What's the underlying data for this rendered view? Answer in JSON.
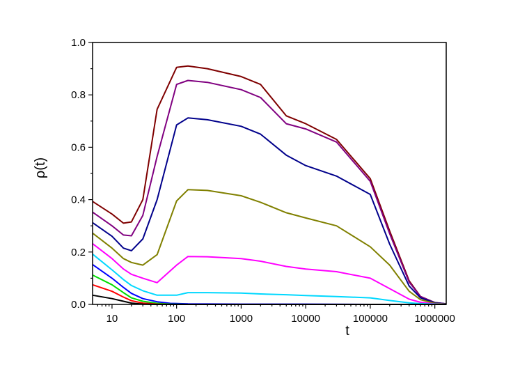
{
  "chart_data": {
    "type": "line",
    "xlabel": "t",
    "ylabel": "ρ(t)",
    "xscale": "log",
    "xlim": [
      5,
      1500000
    ],
    "ylim": [
      0.0,
      1.0
    ],
    "grid": false,
    "legend": "none",
    "xticks": [
      10,
      100,
      1000,
      10000,
      100000,
      1000000
    ],
    "xtick_labels": [
      "10",
      "100",
      "1000",
      "10000",
      "100000",
      "1000000"
    ],
    "yticks": [
      0.0,
      0.2,
      0.4,
      0.6,
      0.8,
      1.0
    ],
    "ytick_labels": [
      "0.0",
      "0.2",
      "0.4",
      "0.6",
      "0.8",
      "1.0"
    ],
    "series": [
      {
        "color": "#7f0000",
        "points": [
          [
            5,
            0.393
          ],
          [
            10,
            0.345
          ],
          [
            15,
            0.31
          ],
          [
            20,
            0.315
          ],
          [
            30,
            0.4
          ],
          [
            50,
            0.745
          ],
          [
            100,
            0.905
          ],
          [
            150,
            0.91
          ],
          [
            300,
            0.9
          ],
          [
            1000,
            0.87
          ],
          [
            2000,
            0.84
          ],
          [
            5000,
            0.72
          ],
          [
            10000,
            0.69
          ],
          [
            30000,
            0.63
          ],
          [
            100000,
            0.48
          ],
          [
            200000,
            0.28
          ],
          [
            400000,
            0.09
          ],
          [
            600000,
            0.03
          ],
          [
            1000000,
            0.007
          ],
          [
            1500000,
            0.002
          ]
        ]
      },
      {
        "color": "#800080",
        "points": [
          [
            5,
            0.352
          ],
          [
            10,
            0.3
          ],
          [
            15,
            0.265
          ],
          [
            20,
            0.262
          ],
          [
            30,
            0.34
          ],
          [
            50,
            0.565
          ],
          [
            100,
            0.84
          ],
          [
            150,
            0.855
          ],
          [
            300,
            0.848
          ],
          [
            1000,
            0.82
          ],
          [
            2000,
            0.79
          ],
          [
            5000,
            0.69
          ],
          [
            10000,
            0.67
          ],
          [
            30000,
            0.62
          ],
          [
            100000,
            0.47
          ],
          [
            200000,
            0.27
          ],
          [
            400000,
            0.085
          ],
          [
            600000,
            0.03
          ],
          [
            1000000,
            0.007
          ],
          [
            1500000,
            0.002
          ]
        ]
      },
      {
        "color": "#00008b",
        "points": [
          [
            5,
            0.312
          ],
          [
            10,
            0.26
          ],
          [
            15,
            0.215
          ],
          [
            20,
            0.205
          ],
          [
            30,
            0.25
          ],
          [
            50,
            0.4
          ],
          [
            100,
            0.685
          ],
          [
            150,
            0.712
          ],
          [
            300,
            0.705
          ],
          [
            1000,
            0.68
          ],
          [
            2000,
            0.65
          ],
          [
            5000,
            0.57
          ],
          [
            10000,
            0.53
          ],
          [
            30000,
            0.49
          ],
          [
            100000,
            0.42
          ],
          [
            200000,
            0.23
          ],
          [
            400000,
            0.07
          ],
          [
            600000,
            0.025
          ],
          [
            1000000,
            0.006
          ],
          [
            1500000,
            0.002
          ]
        ]
      },
      {
        "color": "#808000",
        "points": [
          [
            5,
            0.272
          ],
          [
            10,
            0.215
          ],
          [
            15,
            0.175
          ],
          [
            20,
            0.16
          ],
          [
            30,
            0.15
          ],
          [
            50,
            0.19
          ],
          [
            100,
            0.395
          ],
          [
            150,
            0.438
          ],
          [
            300,
            0.435
          ],
          [
            1000,
            0.415
          ],
          [
            2000,
            0.39
          ],
          [
            5000,
            0.35
          ],
          [
            10000,
            0.33
          ],
          [
            30000,
            0.3
          ],
          [
            100000,
            0.22
          ],
          [
            200000,
            0.15
          ],
          [
            400000,
            0.05
          ],
          [
            600000,
            0.018
          ],
          [
            1000000,
            0.004
          ],
          [
            1500000,
            0.001
          ]
        ]
      },
      {
        "color": "#ff00ff",
        "points": [
          [
            5,
            0.232
          ],
          [
            10,
            0.175
          ],
          [
            15,
            0.135
          ],
          [
            20,
            0.115
          ],
          [
            30,
            0.1
          ],
          [
            50,
            0.083
          ],
          [
            100,
            0.15
          ],
          [
            150,
            0.183
          ],
          [
            300,
            0.182
          ],
          [
            1000,
            0.175
          ],
          [
            2000,
            0.165
          ],
          [
            5000,
            0.145
          ],
          [
            10000,
            0.135
          ],
          [
            30000,
            0.125
          ],
          [
            100000,
            0.1
          ],
          [
            200000,
            0.06
          ],
          [
            400000,
            0.02
          ],
          [
            600000,
            0.008
          ],
          [
            1000000,
            0.002
          ],
          [
            1500000,
            0.0
          ]
        ]
      },
      {
        "color": "#00d8ff",
        "points": [
          [
            5,
            0.192
          ],
          [
            10,
            0.132
          ],
          [
            15,
            0.095
          ],
          [
            20,
            0.072
          ],
          [
            30,
            0.052
          ],
          [
            50,
            0.035
          ],
          [
            100,
            0.035
          ],
          [
            150,
            0.045
          ],
          [
            300,
            0.045
          ],
          [
            1000,
            0.043
          ],
          [
            2000,
            0.04
          ],
          [
            5000,
            0.037
          ],
          [
            10000,
            0.034
          ],
          [
            30000,
            0.03
          ],
          [
            100000,
            0.025
          ],
          [
            200000,
            0.015
          ],
          [
            400000,
            0.006
          ],
          [
            600000,
            0.003
          ],
          [
            1000000,
            0.001
          ],
          [
            1500000,
            0.0
          ]
        ]
      },
      {
        "color": "#0000ff",
        "points": [
          [
            5,
            0.152
          ],
          [
            10,
            0.1
          ],
          [
            15,
            0.065
          ],
          [
            20,
            0.042
          ],
          [
            30,
            0.022
          ],
          [
            50,
            0.01
          ],
          [
            80,
            0.004
          ],
          [
            150,
            0.002
          ],
          [
            1000,
            0.001
          ],
          [
            10000,
            0.001
          ],
          [
            100000,
            0.0
          ],
          [
            1500000,
            0.0
          ]
        ]
      },
      {
        "color": "#00dd00",
        "points": [
          [
            5,
            0.112
          ],
          [
            10,
            0.075
          ],
          [
            15,
            0.045
          ],
          [
            20,
            0.025
          ],
          [
            30,
            0.012
          ],
          [
            50,
            0.004
          ],
          [
            80,
            0.001
          ],
          [
            150,
            0.0
          ],
          [
            1500000,
            0.0
          ]
        ]
      },
      {
        "color": "#ff0000",
        "points": [
          [
            5,
            0.075
          ],
          [
            10,
            0.05
          ],
          [
            15,
            0.028
          ],
          [
            20,
            0.014
          ],
          [
            30,
            0.005
          ],
          [
            50,
            0.001
          ],
          [
            80,
            0.0
          ],
          [
            1500000,
            0.0
          ]
        ]
      },
      {
        "color": "#000000",
        "points": [
          [
            5,
            0.035
          ],
          [
            10,
            0.022
          ],
          [
            15,
            0.012
          ],
          [
            20,
            0.005
          ],
          [
            30,
            0.001
          ],
          [
            50,
            0.0
          ],
          [
            1500000,
            0.0
          ]
        ]
      }
    ]
  }
}
